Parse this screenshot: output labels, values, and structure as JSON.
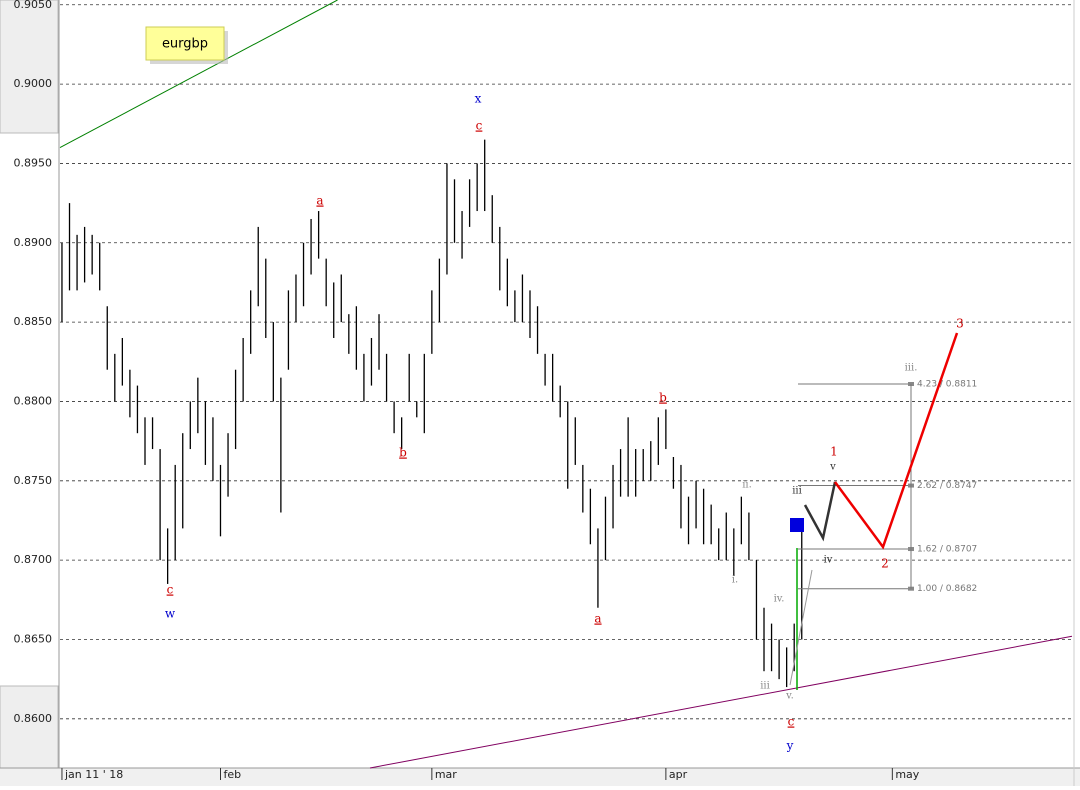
{
  "chart_data": {
    "type": "hlc-bars",
    "title": "eurgbp",
    "x": [
      0,
      1,
      2,
      3,
      4,
      5,
      6,
      7,
      8,
      9,
      10,
      11,
      12,
      13,
      14,
      15,
      16,
      17,
      18,
      19,
      20,
      21,
      22,
      23,
      24,
      25,
      26,
      27,
      28,
      29,
      30,
      31,
      32,
      33,
      34,
      35,
      36,
      37,
      38,
      39,
      40,
      41,
      42,
      43,
      44,
      45,
      46,
      47,
      48,
      49,
      50,
      51,
      52,
      53,
      54,
      55,
      56,
      57,
      58,
      59,
      60,
      61,
      62,
      63,
      64,
      65,
      66,
      67,
      68,
      69,
      70,
      71,
      72,
      73,
      74,
      75,
      76,
      77,
      78,
      79,
      80,
      81,
      82,
      83,
      84,
      85,
      86,
      87,
      88,
      89,
      90,
      91,
      92,
      93,
      94,
      95,
      96,
      97,
      98
    ],
    "high": [
      0.89,
      0.8925,
      0.8905,
      0.891,
      0.8905,
      0.89,
      0.886,
      0.883,
      0.884,
      0.882,
      0.881,
      0.879,
      0.879,
      0.877,
      0.872,
      0.876,
      0.878,
      0.88,
      0.8815,
      0.88,
      0.879,
      0.876,
      0.878,
      0.882,
      0.884,
      0.887,
      0.891,
      0.889,
      0.885,
      0.8815,
      0.887,
      0.888,
      0.89,
      0.8915,
      0.892,
      0.889,
      0.8875,
      0.888,
      0.8855,
      0.886,
      0.883,
      0.884,
      0.8855,
      0.883,
      0.88,
      0.879,
      0.883,
      0.88,
      0.883,
      0.887,
      0.889,
      0.895,
      0.894,
      0.892,
      0.894,
      0.895,
      0.8965,
      0.893,
      0.891,
      0.889,
      0.887,
      0.888,
      0.887,
      0.886,
      0.883,
      0.883,
      0.881,
      0.88,
      0.879,
      0.876,
      0.8745,
      0.872,
      0.874,
      0.876,
      0.877,
      0.879,
      0.877,
      0.877,
      0.8775,
      0.879,
      0.8795,
      0.8765,
      0.876,
      0.874,
      0.875,
      0.8745,
      0.8735,
      0.872,
      0.873,
      0.872,
      0.874,
      0.873,
      0.87,
      0.867,
      0.866,
      0.865,
      0.8645,
      0.866,
      0.872
    ],
    "low": [
      0.885,
      0.887,
      0.887,
      0.8875,
      0.888,
      0.887,
      0.882,
      0.88,
      0.881,
      0.879,
      0.878,
      0.876,
      0.877,
      0.87,
      0.8685,
      0.87,
      0.872,
      0.877,
      0.878,
      0.876,
      0.875,
      0.8715,
      0.874,
      0.877,
      0.88,
      0.883,
      0.886,
      0.884,
      0.88,
      0.873,
      0.882,
      0.885,
      0.886,
      0.888,
      0.889,
      0.886,
      0.884,
      0.885,
      0.883,
      0.882,
      0.88,
      0.881,
      0.882,
      0.88,
      0.878,
      0.877,
      0.88,
      0.879,
      0.878,
      0.883,
      0.885,
      0.888,
      0.89,
      0.889,
      0.891,
      0.892,
      0.892,
      0.89,
      0.887,
      0.886,
      0.885,
      0.885,
      0.884,
      0.883,
      0.881,
      0.88,
      0.879,
      0.8745,
      0.876,
      0.873,
      0.871,
      0.867,
      0.87,
      0.872,
      0.874,
      0.874,
      0.874,
      0.875,
      0.875,
      0.876,
      0.877,
      0.8745,
      0.872,
      0.871,
      0.872,
      0.871,
      0.871,
      0.87,
      0.87,
      0.869,
      0.871,
      0.87,
      0.865,
      0.863,
      0.863,
      0.8625,
      0.862,
      0.863,
      0.865
    ],
    "color": "#000000",
    "xlim": [
      -0.26,
      133.8
    ],
    "xticks": [
      {
        "value": 0,
        "label": "jan 11 ' 18"
      },
      {
        "value": 21,
        "label": "feb"
      },
      {
        "value": 49,
        "label": "mar"
      },
      {
        "value": 80,
        "label": "apr"
      },
      {
        "value": 110,
        "label": "may"
      }
    ],
    "ylim": [
      0.8569,
      0.9053
    ],
    "yticks": [
      {
        "value": 0.86,
        "label": "0.8600"
      },
      {
        "value": 0.865,
        "label": "0.8650"
      },
      {
        "value": 0.87,
        "label": "0.8700"
      },
      {
        "value": 0.875,
        "label": "0.8750"
      },
      {
        "value": 0.88,
        "label": "0.8800"
      },
      {
        "value": 0.885,
        "label": "0.8850"
      },
      {
        "value": 0.89,
        "label": "0.8900"
      },
      {
        "value": 0.895,
        "label": "0.8950"
      },
      {
        "value": 0.9,
        "label": "0.9000"
      },
      {
        "value": 0.905,
        "label": "0.9050"
      }
    ],
    "grid": true,
    "trendlines": [
      {
        "color": "#008000",
        "x": [
          -0.26,
          36.5
        ],
        "y": [
          0.896,
          0.9053
        ]
      },
      {
        "color": "#800060",
        "x": [
          40.8,
          133.8
        ],
        "y": [
          0.8569,
          0.8652
        ]
      }
    ],
    "fib_levels": [
      {
        "value": 0.8811,
        "label": "4.23 / 0.8811"
      },
      {
        "value": 0.8747,
        "label": "2.62 / 0.8747"
      },
      {
        "value": 0.8707,
        "label": "1.62 / 0.8707"
      },
      {
        "value": 0.8682,
        "label": "1.00 / 0.8682"
      }
    ],
    "annotations": [
      {
        "text": "x",
        "color": "#0000cc"
      },
      {
        "text": "c",
        "color": "#cc0000"
      },
      {
        "text": "a",
        "color": "#cc0000"
      },
      {
        "text": "b",
        "color": "#cc0000"
      },
      {
        "text": "c",
        "color": "#cc0000"
      },
      {
        "text": "w",
        "color": "#0000cc"
      },
      {
        "text": "a",
        "color": "#cc0000"
      },
      {
        "text": "b",
        "color": "#cc0000"
      },
      {
        "text": "ii.",
        "color": "#888888"
      },
      {
        "text": "i.",
        "color": "#888888"
      },
      {
        "text": "iv.",
        "color": "#888888"
      },
      {
        "text": "iii",
        "color": "#888888"
      },
      {
        "text": "v.",
        "color": "#888888"
      },
      {
        "text": "c",
        "color": "#cc0000"
      },
      {
        "text": "y",
        "color": "#0000cc"
      },
      {
        "text": "1",
        "color": "#cc0000"
      },
      {
        "text": "v",
        "color": "#333333"
      },
      {
        "text": "iii",
        "color": "#333333"
      },
      {
        "text": "iv",
        "color": "#333333"
      },
      {
        "text": "2",
        "color": "#cc0000"
      },
      {
        "text": "3",
        "color": "#cc0000"
      },
      {
        "text": "iii.",
        "color": "#888888"
      }
    ]
  }
}
